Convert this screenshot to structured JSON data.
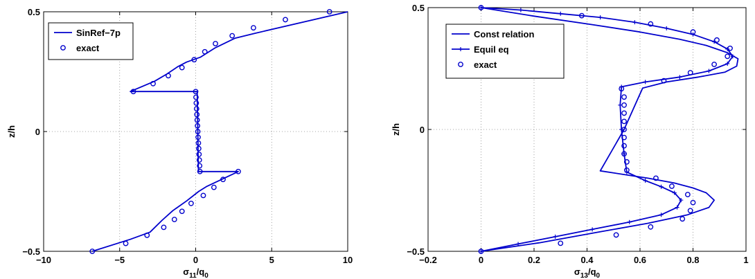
{
  "colors": {
    "series": "#0000cc",
    "axis": "#000000",
    "grid": "#888888"
  },
  "chart_data": [
    {
      "type": "line",
      "xlabel": "σ11/q0",
      "xlabel_main": "σ",
      "xlabel_sub": "11",
      "xlabel_suffix": "/q",
      "xlabel_suffix_sub": "0",
      "ylabel": "z/h",
      "xlim": [
        -10,
        10
      ],
      "ylim": [
        -0.5,
        0.5
      ],
      "xticks": [
        -10,
        -5,
        0,
        5,
        10
      ],
      "yticks": [
        -0.5,
        0,
        0.5
      ],
      "xtick_labels": [
        "−10",
        "−5",
        "0",
        "5",
        "10"
      ],
      "ytick_labels": [
        "−0.5",
        "0",
        "0.5"
      ],
      "grid": true,
      "legend_position": "top-left",
      "series": [
        {
          "name": "SinRef−7p",
          "style": "line",
          "points": [
            [
              10.0,
              0.5
            ],
            [
              3.9,
              0.41
            ],
            [
              2.6,
              0.39
            ],
            [
              1.3,
              0.35
            ],
            [
              0.3,
              0.31
            ],
            [
              -0.6,
              0.29
            ],
            [
              -1.2,
              0.27
            ],
            [
              -1.9,
              0.24
            ],
            [
              -2.7,
              0.21
            ],
            [
              -4.3,
              0.167
            ],
            [
              0.1,
              0.167
            ],
            [
              0.12,
              0.1
            ],
            [
              0.14,
              0.0
            ],
            [
              0.16,
              -0.1
            ],
            [
              0.18,
              -0.167
            ],
            [
              2.8,
              -0.167
            ],
            [
              0.7,
              -0.23
            ],
            [
              0.2,
              -0.25
            ],
            [
              -0.6,
              -0.29
            ],
            [
              -1.5,
              -0.33
            ],
            [
              -2.2,
              -0.37
            ],
            [
              -3.0,
              -0.42
            ],
            [
              -4.3,
              -0.45
            ],
            [
              -6.8,
              -0.5
            ]
          ]
        },
        {
          "name": "exact",
          "style": "circle",
          "points": [
            [
              8.8,
              0.5
            ],
            [
              5.9,
              0.467
            ],
            [
              3.8,
              0.433
            ],
            [
              2.4,
              0.4
            ],
            [
              1.3,
              0.367
            ],
            [
              0.6,
              0.333
            ],
            [
              -0.1,
              0.3
            ],
            [
              -0.9,
              0.267
            ],
            [
              -1.8,
              0.233
            ],
            [
              -2.8,
              0.2
            ],
            [
              -4.1,
              0.167
            ],
            [
              0.0,
              0.167
            ],
            [
              0.02,
              0.143
            ],
            [
              0.04,
              0.119
            ],
            [
              0.06,
              0.095
            ],
            [
              0.08,
              0.071
            ],
            [
              0.1,
              0.048
            ],
            [
              0.12,
              0.024
            ],
            [
              0.14,
              0.0
            ],
            [
              0.16,
              -0.024
            ],
            [
              0.18,
              -0.048
            ],
            [
              0.2,
              -0.071
            ],
            [
              0.22,
              -0.095
            ],
            [
              0.24,
              -0.119
            ],
            [
              0.26,
              -0.143
            ],
            [
              0.28,
              -0.167
            ],
            [
              2.8,
              -0.167
            ],
            [
              1.8,
              -0.2
            ],
            [
              1.2,
              -0.233
            ],
            [
              0.5,
              -0.267
            ],
            [
              -0.3,
              -0.3
            ],
            [
              -0.9,
              -0.333
            ],
            [
              -1.4,
              -0.367
            ],
            [
              -2.1,
              -0.4
            ],
            [
              -3.2,
              -0.433
            ],
            [
              -4.6,
              -0.467
            ],
            [
              -6.8,
              -0.5
            ]
          ]
        }
      ]
    },
    {
      "type": "line",
      "xlabel": "σ13/q0",
      "xlabel_main": "σ",
      "xlabel_sub": "13",
      "xlabel_suffix": "/q",
      "xlabel_suffix_sub": "0",
      "ylabel": "z/h",
      "xlim": [
        -0.2,
        1
      ],
      "ylim": [
        -0.5,
        0.5
      ],
      "xticks": [
        -0.2,
        0,
        0.2,
        0.4,
        0.6,
        0.8,
        1
      ],
      "yticks": [
        -0.5,
        0,
        0.5
      ],
      "xtick_labels": [
        "−0.2",
        "0",
        "0.2",
        "0.4",
        "0.6",
        "0.8",
        "1"
      ],
      "ytick_labels": [
        "−0.5",
        "0",
        "0.5"
      ],
      "grid": true,
      "legend_position": "top-left",
      "series": [
        {
          "name": "Const relation",
          "style": "line",
          "points": [
            [
              0.0,
              0.5
            ],
            [
              0.2,
              0.465
            ],
            [
              0.42,
              0.43
            ],
            [
              0.6,
              0.4
            ],
            [
              0.75,
              0.37
            ],
            [
              0.85,
              0.345
            ],
            [
              0.93,
              0.315
            ],
            [
              0.97,
              0.29
            ],
            [
              0.965,
              0.26
            ],
            [
              0.92,
              0.235
            ],
            [
              0.82,
              0.215
            ],
            [
              0.7,
              0.195
            ],
            [
              0.61,
              0.17
            ],
            [
              0.54,
              0.0
            ],
            [
              0.45,
              -0.17
            ],
            [
              0.63,
              -0.2
            ],
            [
              0.73,
              -0.22
            ],
            [
              0.8,
              -0.24
            ],
            [
              0.85,
              -0.26
            ],
            [
              0.88,
              -0.29
            ],
            [
              0.86,
              -0.32
            ],
            [
              0.78,
              -0.35
            ],
            [
              0.63,
              -0.385
            ],
            [
              0.45,
              -0.42
            ],
            [
              0.22,
              -0.465
            ],
            [
              0.0,
              -0.5
            ]
          ]
        },
        {
          "name": "Equil eq",
          "style": "plus-line",
          "points": [
            [
              0.0,
              0.5
            ],
            [
              0.15,
              0.49
            ],
            [
              0.3,
              0.475
            ],
            [
              0.45,
              0.46
            ],
            [
              0.58,
              0.44
            ],
            [
              0.7,
              0.415
            ],
            [
              0.8,
              0.39
            ],
            [
              0.88,
              0.36
            ],
            [
              0.93,
              0.33
            ],
            [
              0.95,
              0.3
            ],
            [
              0.93,
              0.27
            ],
            [
              0.86,
              0.24
            ],
            [
              0.75,
              0.215
            ],
            [
              0.62,
              0.195
            ],
            [
              0.53,
              0.175
            ],
            [
              0.525,
              0.1
            ],
            [
              0.53,
              0.0
            ],
            [
              0.54,
              -0.1
            ],
            [
              0.55,
              -0.175
            ],
            [
              0.62,
              -0.21
            ],
            [
              0.68,
              -0.235
            ],
            [
              0.73,
              -0.26
            ],
            [
              0.755,
              -0.29
            ],
            [
              0.74,
              -0.32
            ],
            [
              0.68,
              -0.35
            ],
            [
              0.56,
              -0.38
            ],
            [
              0.42,
              -0.41
            ],
            [
              0.28,
              -0.44
            ],
            [
              0.14,
              -0.47
            ],
            [
              0.0,
              -0.5
            ]
          ]
        },
        {
          "name": "exact",
          "style": "circle",
          "points": [
            [
              0.0,
              0.5
            ],
            [
              0.38,
              0.467
            ],
            [
              0.64,
              0.433
            ],
            [
              0.8,
              0.4
            ],
            [
              0.89,
              0.367
            ],
            [
              0.94,
              0.333
            ],
            [
              0.93,
              0.3
            ],
            [
              0.88,
              0.267
            ],
            [
              0.79,
              0.233
            ],
            [
              0.69,
              0.2
            ],
            [
              0.53,
              0.167
            ],
            [
              0.54,
              0.133
            ],
            [
              0.54,
              0.1
            ],
            [
              0.54,
              0.067
            ],
            [
              0.54,
              0.033
            ],
            [
              0.54,
              0.0
            ],
            [
              0.54,
              -0.033
            ],
            [
              0.54,
              -0.067
            ],
            [
              0.54,
              -0.1
            ],
            [
              0.55,
              -0.133
            ],
            [
              0.55,
              -0.167
            ],
            [
              0.66,
              -0.2
            ],
            [
              0.72,
              -0.233
            ],
            [
              0.78,
              -0.267
            ],
            [
              0.8,
              -0.3
            ],
            [
              0.79,
              -0.333
            ],
            [
              0.76,
              -0.367
            ],
            [
              0.64,
              -0.4
            ],
            [
              0.51,
              -0.433
            ],
            [
              0.3,
              -0.467
            ],
            [
              0.0,
              -0.5
            ]
          ]
        }
      ]
    }
  ]
}
